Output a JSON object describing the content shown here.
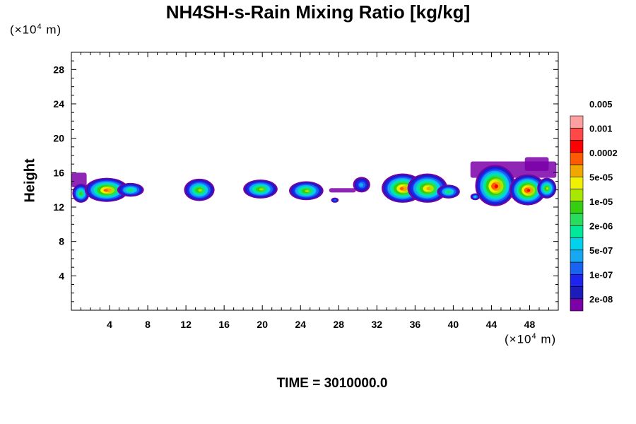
{
  "chart_data": {
    "type": "heatmap",
    "title": "NH4SH-s-Rain Mixing Ratio [kg/kg]",
    "ylabel": "Height",
    "y_unit": {
      "prefix": "(×10",
      "exp": "4",
      "suffix": " m)"
    },
    "x_unit": {
      "prefix": "(×10",
      "exp": "4",
      "suffix": " m)"
    },
    "xlim": [
      0,
      51
    ],
    "ylim": [
      0,
      30
    ],
    "x_ticks": [
      4,
      8,
      12,
      16,
      20,
      24,
      28,
      32,
      36,
      40,
      44,
      48
    ],
    "y_ticks": [
      4,
      8,
      12,
      16,
      20,
      24,
      28
    ],
    "footer": "TIME = 3010000.0",
    "colorbar": {
      "colors": [
        "#7b00a8",
        "#1c1cb8",
        "#1c24ee",
        "#1a62f0",
        "#16a8f0",
        "#00d2ee",
        "#00e89a",
        "#28dc5c",
        "#36ce10",
        "#a8e800",
        "#f0f000",
        "#f2a600",
        "#ff5a00",
        "#ff0000",
        "#ff4848",
        "#ffa0a0"
      ],
      "labels": [
        "2e-08",
        "1e-07",
        "5e-07",
        "2e-06",
        "1e-05",
        "5e-05",
        "0.0002",
        "0.001",
        "0.005"
      ]
    },
    "blobs": [
      {
        "cx": 1.0,
        "cy": 13.6,
        "rx": 0.9,
        "ry": 1.1,
        "level": 8
      },
      {
        "cx": 3.7,
        "cy": 14.0,
        "rx": 2.3,
        "ry": 1.4,
        "level": 12
      },
      {
        "cx": 6.2,
        "cy": 14.0,
        "rx": 1.4,
        "ry": 0.8,
        "level": 7
      },
      {
        "cx": 13.4,
        "cy": 14.0,
        "rx": 1.6,
        "ry": 1.3,
        "level": 9
      },
      {
        "cx": 19.8,
        "cy": 14.1,
        "rx": 1.8,
        "ry": 1.1,
        "level": 9
      },
      {
        "cx": 24.6,
        "cy": 13.9,
        "rx": 1.8,
        "ry": 1.1,
        "level": 9
      },
      {
        "cx": 27.6,
        "cy": 12.8,
        "rx": 0.4,
        "ry": 0.3,
        "level": 3
      },
      {
        "cx": 30.4,
        "cy": 14.6,
        "rx": 0.9,
        "ry": 0.9,
        "level": 4
      },
      {
        "cx": 34.7,
        "cy": 14.2,
        "rx": 2.2,
        "ry": 1.7,
        "level": 12
      },
      {
        "cx": 37.3,
        "cy": 14.2,
        "rx": 2.1,
        "ry": 1.7,
        "level": 11
      },
      {
        "cx": 39.5,
        "cy": 13.8,
        "rx": 1.2,
        "ry": 0.8,
        "level": 7
      },
      {
        "cx": 44.4,
        "cy": 14.5,
        "rx": 2.1,
        "ry": 2.4,
        "level": 13
      },
      {
        "cx": 47.8,
        "cy": 14.0,
        "rx": 1.9,
        "ry": 1.8,
        "level": 13
      },
      {
        "cx": 49.8,
        "cy": 14.2,
        "rx": 1.0,
        "ry": 1.2,
        "level": 9
      },
      {
        "cx": 42.3,
        "cy": 13.2,
        "rx": 0.5,
        "ry": 0.4,
        "level": 5
      }
    ],
    "haze": [
      {
        "x0": 0.0,
        "x1": 1.6,
        "y0": 14.3,
        "y1": 16.0
      },
      {
        "x0": 27.0,
        "x1": 29.8,
        "y0": 13.7,
        "y1": 14.2
      },
      {
        "x0": 41.8,
        "x1": 50.8,
        "y0": 15.4,
        "y1": 17.3
      },
      {
        "x0": 47.5,
        "x1": 50.0,
        "y0": 16.2,
        "y1": 17.8
      }
    ]
  }
}
